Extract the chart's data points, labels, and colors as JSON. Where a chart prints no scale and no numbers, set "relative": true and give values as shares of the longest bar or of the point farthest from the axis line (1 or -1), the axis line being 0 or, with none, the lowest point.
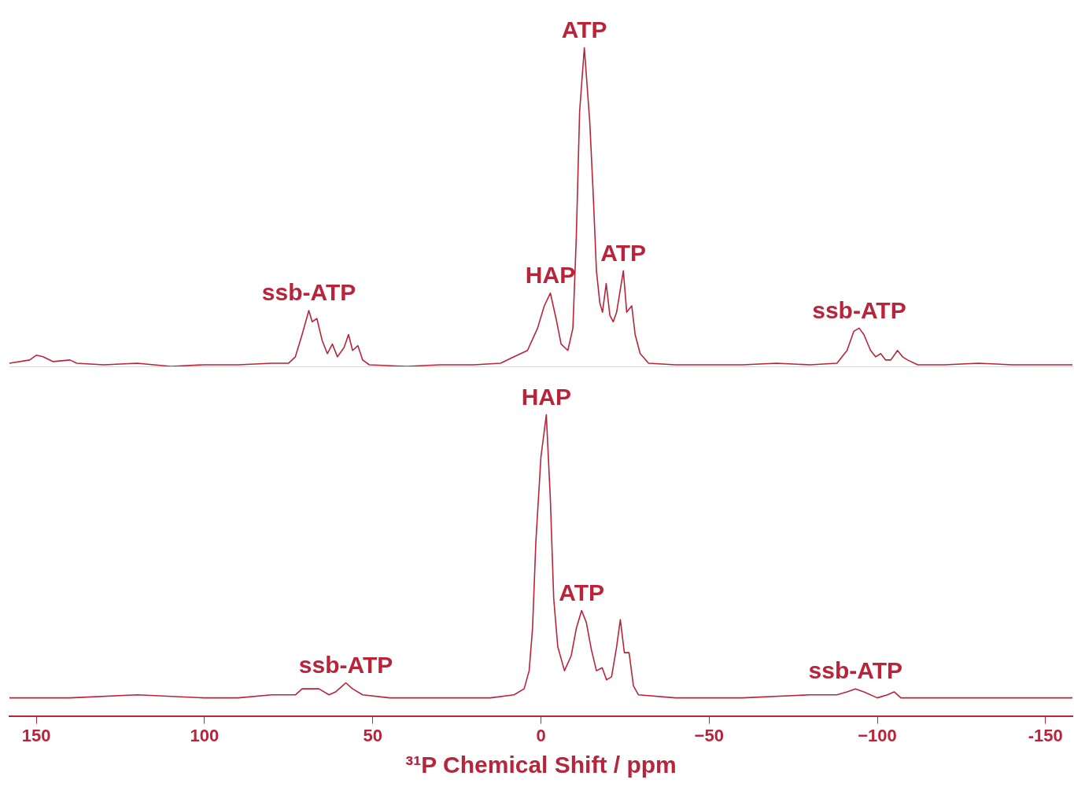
{
  "chart_data": [
    {
      "type": "line",
      "relative": true,
      "xlim": [
        158,
        -158
      ],
      "tick_labels": false,
      "x": [
        158,
        152,
        150,
        148,
        145,
        140,
        138,
        130,
        120,
        110,
        100,
        90,
        80,
        75,
        73,
        71,
        69,
        68,
        66.6,
        65,
        63.5,
        62,
        60.5,
        58.5,
        57.2,
        56,
        54.4,
        53,
        51,
        40,
        30,
        20,
        12,
        8,
        4,
        1,
        -1,
        -2.8,
        -4.5,
        -6,
        -8,
        -9.5,
        -10.5,
        -11.5,
        -12.9,
        -14.5,
        -15.5,
        -16.5,
        -17.5,
        -18.3,
        -19.4,
        -20.5,
        -21.5,
        -22.5,
        -24.5,
        -25.5,
        -27,
        -28,
        -29.5,
        -32,
        -40,
        -50,
        -60,
        -70,
        -80,
        -88,
        -91,
        -93,
        -94.6,
        -96,
        -98,
        -99.5,
        -101,
        -102.5,
        -104,
        -106,
        -107.5,
        -109,
        -112,
        -120,
        -130,
        -140,
        -158
      ],
      "series": [
        {
          "color": "#b8253b",
          "values": [
            0.01,
            0.02,
            0.035,
            0.03,
            0.015,
            0.02,
            0.01,
            0.005,
            0.01,
            0,
            0.005,
            0.005,
            0.01,
            0.01,
            0.03,
            0.1,
            0.175,
            0.14,
            0.15,
            0.08,
            0.04,
            0.07,
            0.03,
            0.06,
            0.1,
            0.05,
            0.065,
            0.02,
            0.005,
            0,
            0.005,
            0.005,
            0.01,
            0.03,
            0.05,
            0.12,
            0.19,
            0.23,
            0.15,
            0.07,
            0.05,
            0.12,
            0.4,
            0.8,
            1.0,
            0.77,
            0.55,
            0.3,
            0.2,
            0.17,
            0.26,
            0.16,
            0.14,
            0.17,
            0.3,
            0.17,
            0.19,
            0.1,
            0.04,
            0.01,
            0.005,
            0.005,
            0.005,
            0.01,
            0.005,
            0.01,
            0.05,
            0.11,
            0.12,
            0.1,
            0.05,
            0.03,
            0.04,
            0.02,
            0.02,
            0.05,
            0.03,
            0.02,
            0.005,
            0.005,
            0.01,
            0.005,
            0.005
          ]
        }
      ],
      "annotations": [
        {
          "text": "ATP",
          "x": -12.9,
          "y": 1.0
        },
        {
          "text": "ATP",
          "x": -24.5,
          "y": 0.3
        },
        {
          "text": "HAP",
          "x": -2.8,
          "y": 0.23
        },
        {
          "text": "ssb-ATP",
          "x": 69,
          "y": 0.175
        },
        {
          "text": "ssb-ATP",
          "x": -94.6,
          "y": 0.12
        }
      ]
    },
    {
      "type": "line",
      "relative": true,
      "xlim": [
        158,
        -158
      ],
      "tick_labels": "x",
      "xlabel": "³¹P Chemical Shift / ppm",
      "xticks": [
        150,
        100,
        50,
        0,
        {
          "value": -50,
          "label": "−50"
        },
        {
          "value": -100,
          "label": "−100"
        },
        {
          "value": -150,
          "label": "-150"
        }
      ],
      "x": [
        158,
        140,
        120,
        100,
        90,
        80,
        73,
        71,
        69,
        66,
        63,
        61,
        59,
        58,
        56,
        53,
        45,
        30,
        15,
        8,
        5,
        3.5,
        2.5,
        1.5,
        0,
        -1.6,
        -2.8,
        -3.8,
        -5,
        -7,
        -9,
        -10.5,
        -12.1,
        -13.5,
        -15,
        -16.5,
        -18.2,
        -19.5,
        -21,
        -22.5,
        -23.6,
        -24.8,
        -26.2,
        -27.5,
        -29,
        -40,
        -60,
        -80,
        -88,
        -91,
        -93.5,
        -96,
        -100,
        -103,
        -105,
        -107,
        -120,
        -140,
        -158
      ],
      "series": [
        {
          "color": "#b8253b",
          "values": [
            0.06,
            0.06,
            0.07,
            0.06,
            0.06,
            0.07,
            0.07,
            0.09,
            0.09,
            0.09,
            0.07,
            0.08,
            0.1,
            0.11,
            0.09,
            0.07,
            0.06,
            0.06,
            0.06,
            0.07,
            0.09,
            0.15,
            0.29,
            0.58,
            0.86,
            1,
            0.72,
            0.39,
            0.23,
            0.15,
            0.2,
            0.29,
            0.35,
            0.31,
            0.22,
            0.15,
            0.16,
            0.12,
            0.13,
            0.23,
            0.32,
            0.21,
            0.21,
            0.1,
            0.07,
            0.06,
            0.06,
            0.07,
            0.07,
            0.08,
            0.09,
            0.08,
            0.06,
            0.07,
            0.08,
            0.06,
            0.06,
            0.06,
            0.06
          ]
        }
      ],
      "annotations": [
        {
          "text": "HAP",
          "x": -1.6,
          "y": 1
        },
        {
          "text": "ATP",
          "x": -12.1,
          "y": 0.35
        },
        {
          "text": "ssb-ATP",
          "x": 58,
          "y": 0.11
        },
        {
          "text": "ssb-ATP",
          "x": -93.5,
          "y": 0.09
        }
      ]
    }
  ]
}
